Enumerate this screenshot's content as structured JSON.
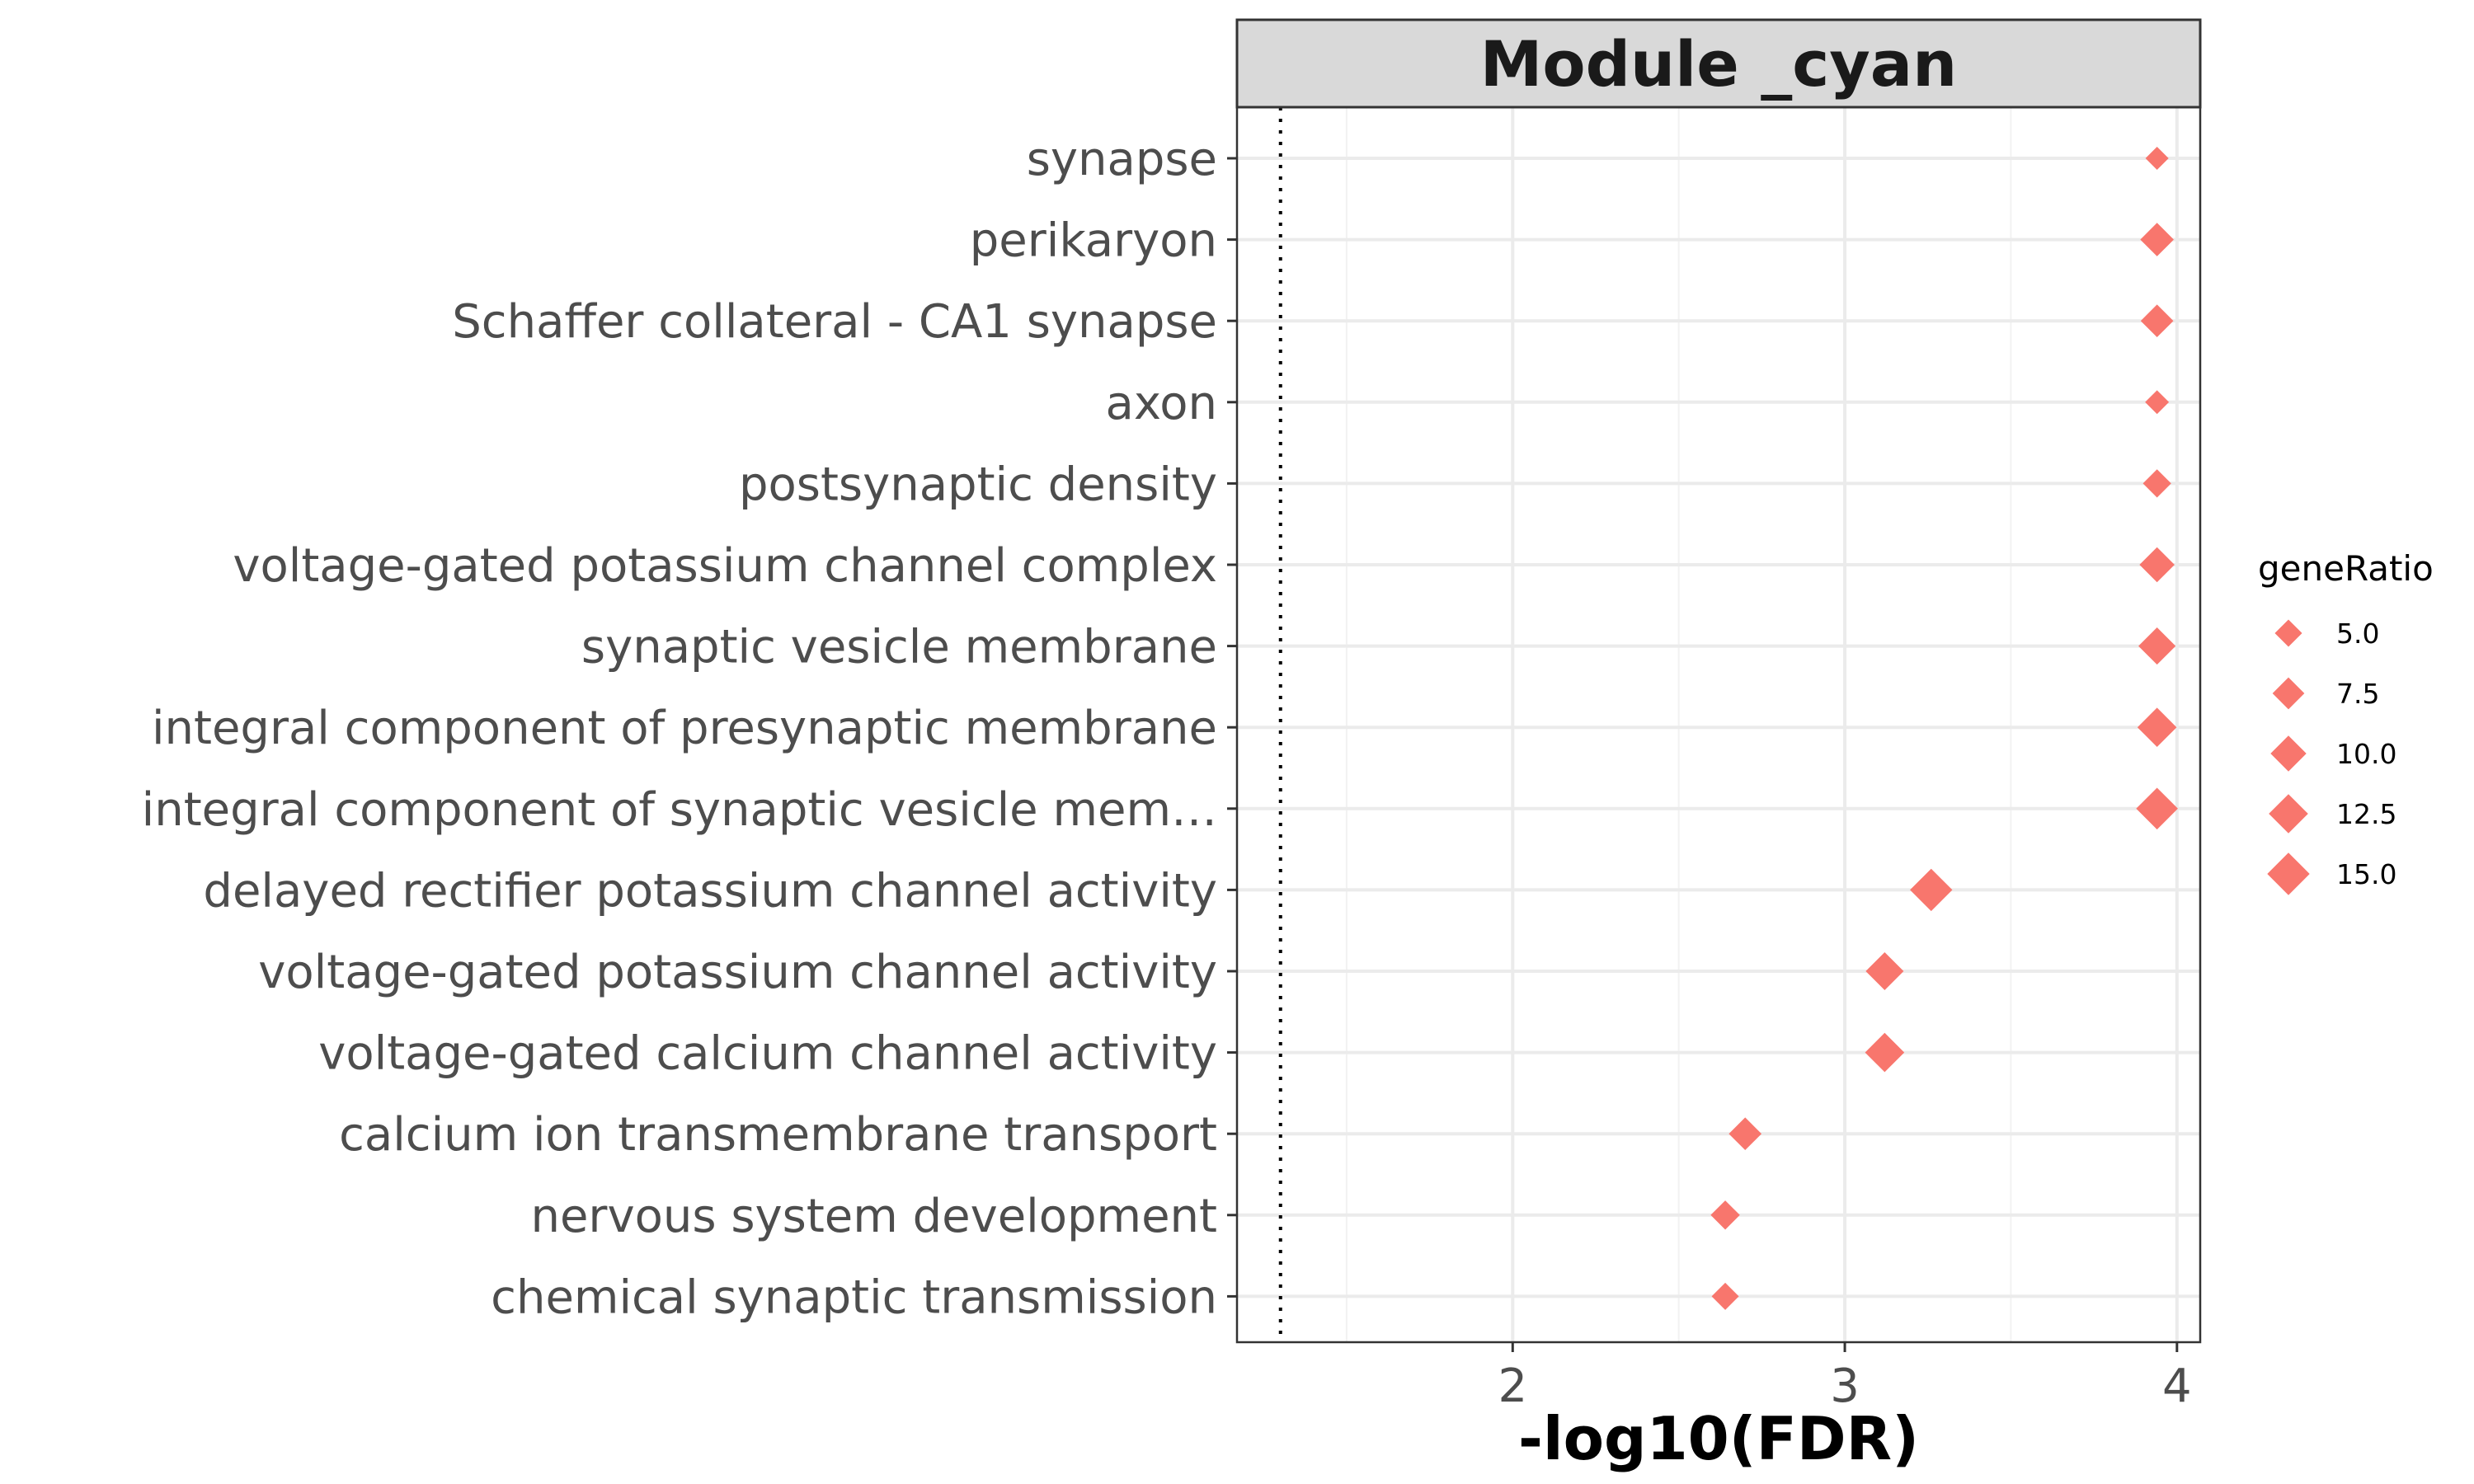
{
  "chart_data": {
    "type": "scatter",
    "title": "Module _cyan",
    "xlabel": "-log10(FDR)",
    "ylabel": "",
    "xlim": [
      1.17,
      4.07
    ],
    "xticks": [
      2,
      3,
      4
    ],
    "xtick_labels": [
      "2",
      "3",
      "4"
    ],
    "reference_line_x": 1.301,
    "marker_color": "#F8766D",
    "marker_shape": "diamond",
    "categories": [
      "synapse",
      "perikaryon",
      "Schaffer collateral - CA1 synapse",
      "axon",
      "postsynaptic density",
      "voltage-gated potassium channel complex",
      "synaptic vesicle membrane",
      "integral component of presynaptic membrane",
      "integral component of synaptic vesicle mem…",
      "delayed rectifier potassium channel activity",
      "voltage-gated potassium channel activity",
      "voltage-gated calcium channel activity",
      "calcium ion transmembrane transport",
      "nervous system development",
      "chemical synaptic transmission"
    ],
    "values": [
      3.94,
      3.94,
      3.94,
      3.94,
      3.94,
      3.94,
      3.94,
      3.94,
      3.94,
      3.26,
      3.12,
      3.12,
      2.7,
      2.64,
      2.64
    ],
    "geneRatio": [
      3.2,
      8.5,
      8.0,
      3.5,
      5.5,
      9.5,
      11.0,
      12.5,
      14.5,
      15.0,
      11.5,
      12.5,
      8.0,
      6.0,
      5.0
    ],
    "legend": {
      "title": "geneRatio",
      "position": "right",
      "entries": [
        {
          "label": "5.0",
          "value": 5.0
        },
        {
          "label": "7.5",
          "value": 7.5
        },
        {
          "label": "10.0",
          "value": 10.0
        },
        {
          "label": "12.5",
          "value": 12.5
        },
        {
          "label": "15.0",
          "value": 15.0
        }
      ]
    },
    "grid": true
  }
}
